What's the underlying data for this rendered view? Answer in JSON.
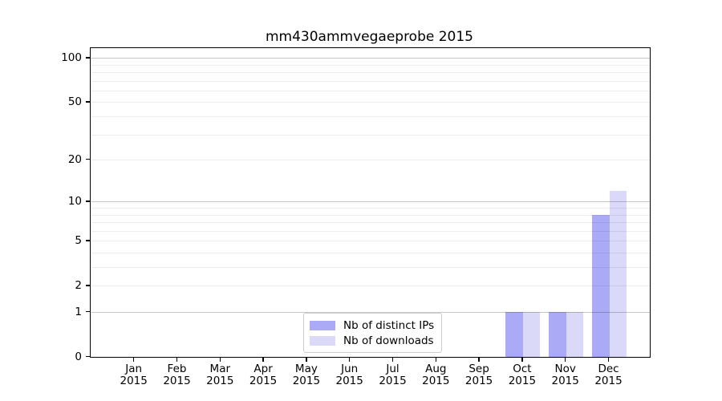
{
  "chart_data": {
    "type": "bar",
    "title": "mm430ammvegaeprobe 2015",
    "x_ticks": [
      {
        "month": "Jan",
        "year": "2015"
      },
      {
        "month": "Feb",
        "year": "2015"
      },
      {
        "month": "Mar",
        "year": "2015"
      },
      {
        "month": "Apr",
        "year": "2015"
      },
      {
        "month": "May",
        "year": "2015"
      },
      {
        "month": "Jun",
        "year": "2015"
      },
      {
        "month": "Jul",
        "year": "2015"
      },
      {
        "month": "Aug",
        "year": "2015"
      },
      {
        "month": "Sep",
        "year": "2015"
      },
      {
        "month": "Oct",
        "year": "2015"
      },
      {
        "month": "Nov",
        "year": "2015"
      },
      {
        "month": "Dec",
        "year": "2015"
      }
    ],
    "series": [
      {
        "name": "Nb of distinct IPs",
        "color": "#aaaaf7",
        "values": [
          0,
          0,
          0,
          0,
          0,
          0,
          0,
          0,
          0,
          1,
          1,
          8
        ]
      },
      {
        "name": "Nb of downloads",
        "color": "#dadaf8",
        "values": [
          0,
          0,
          0,
          0,
          0,
          0,
          0,
          0,
          0,
          1,
          1,
          12
        ]
      }
    ],
    "y_axis": {
      "scale": "log1p",
      "tick_values": [
        0,
        1,
        2,
        5,
        10,
        20,
        50,
        100
      ],
      "major_gridlines": [
        1,
        10,
        100
      ],
      "minor_gridlines": [
        2,
        3,
        4,
        5,
        6,
        7,
        8,
        9,
        20,
        30,
        40,
        50,
        60,
        70,
        80,
        90
      ],
      "ylim": [
        0,
        116
      ]
    },
    "legend": {
      "position": "lower center"
    },
    "grid": true,
    "colors": {
      "major_grid": "#c8c8c8",
      "minor_grid": "#ececec",
      "axis": "#000000",
      "background": "#ffffff"
    }
  }
}
